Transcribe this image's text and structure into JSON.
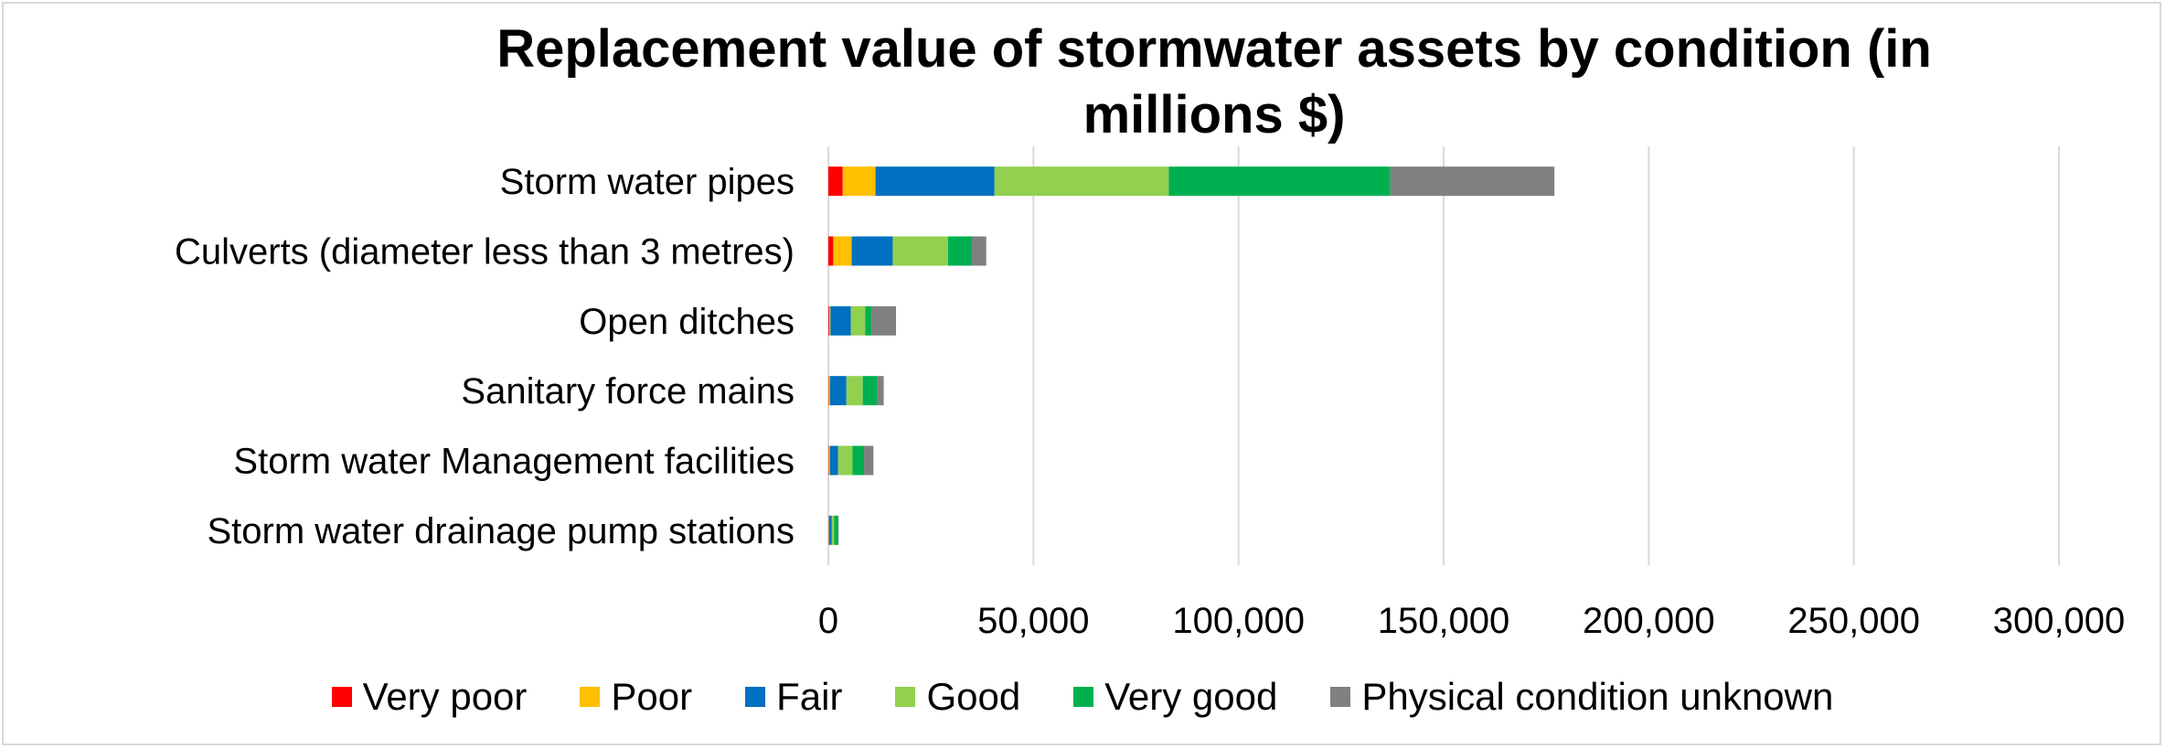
{
  "chart_data": {
    "type": "bar",
    "orientation": "horizontal",
    "stacked": true,
    "title": "Replacement value of stormwater assets by condition (in millions $)",
    "xlabel": "",
    "ylabel": "",
    "xlim": [
      0,
      300000
    ],
    "xticks": [
      0,
      50000,
      100000,
      150000,
      200000,
      250000,
      300000
    ],
    "xtick_labels": [
      "0",
      "50,000",
      "100,000",
      "150,000",
      "200,000",
      "250,000",
      "300,000"
    ],
    "grid": "vertical",
    "legend_position": "bottom",
    "categories": [
      "Storm water pipes",
      "Culverts (diameter less than 3 metres)",
      "Open ditches",
      "Sanitary force mains",
      "Storm water Management facilities",
      "Storm water drainage pump stations"
    ],
    "series": [
      {
        "name": "Very poor",
        "color": "#ff0000",
        "values": [
          3500,
          1200,
          200,
          100,
          100,
          50
        ]
      },
      {
        "name": "Poor",
        "color": "#ffc000",
        "values": [
          8000,
          4500,
          300,
          300,
          300,
          100
        ]
      },
      {
        "name": "Fair",
        "color": "#0070c0",
        "values": [
          29000,
          10000,
          5000,
          4000,
          2000,
          700
        ]
      },
      {
        "name": "Good",
        "color": "#92d050",
        "values": [
          42500,
          13500,
          3500,
          4000,
          3500,
          600
        ]
      },
      {
        "name": "Very good",
        "color": "#00b050",
        "values": [
          54000,
          5800,
          1500,
          3600,
          2800,
          900
        ]
      },
      {
        "name": "Physical condition unknown",
        "color": "#808080",
        "values": [
          40000,
          3500,
          6000,
          1500,
          2300,
          150
        ]
      }
    ]
  }
}
